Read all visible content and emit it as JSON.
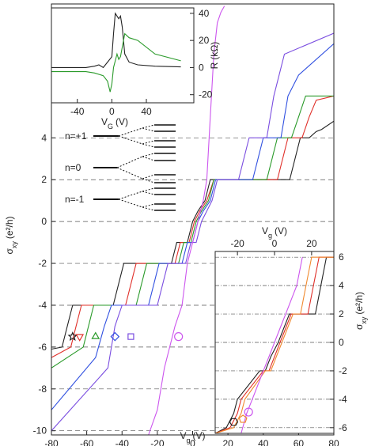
{
  "chart_data": [
    {
      "type": "line",
      "x_label": {
        "symbol": "V",
        "subscript": "g",
        "unit": "(V)"
      },
      "y_label": {
        "symbol": "σ",
        "subscript": "xy",
        "unit": "(e²/h)"
      },
      "xlim": [
        -80,
        80
      ],
      "ylim": [
        -10.2,
        10.4
      ],
      "xticks": [
        -80,
        -60,
        -40,
        -20,
        0,
        20,
        40,
        60,
        80
      ],
      "yticks": [
        -10,
        -8,
        -6,
        -4,
        -2,
        0,
        2,
        4
      ],
      "grid": true,
      "annotations": [
        "n=+1",
        "n=0",
        "n=-1"
      ],
      "series": [
        {
          "color": "#222222",
          "x": [
            -80,
            -74,
            -71,
            -68,
            -45,
            -42,
            -39,
            -12,
            -9,
            -3,
            0,
            3,
            7,
            10,
            55,
            58,
            61,
            66,
            70,
            73,
            80
          ],
          "values": [
            -6.1,
            -6,
            -5,
            -4,
            -4,
            -3,
            -2,
            -2,
            -1,
            -1,
            0,
            0.5,
            1,
            2,
            2,
            3,
            4,
            4,
            4.3,
            4.4,
            4.8
          ]
        },
        {
          "color": "#e0302a",
          "x": [
            -80,
            -69,
            -66,
            -63,
            -38,
            -35,
            -32,
            -10,
            -7,
            -2,
            1,
            4,
            8,
            12,
            48,
            51,
            54,
            62,
            66,
            70,
            80
          ],
          "values": [
            -6.5,
            -6,
            -5,
            -4,
            -4,
            -3,
            -2,
            -2,
            -1,
            -1,
            0,
            0.5,
            1,
            2,
            2,
            3,
            4,
            4,
            5,
            5.8,
            6
          ]
        },
        {
          "color": "#2a9a2a",
          "x": [
            -80,
            -62,
            -59,
            -56,
            -32,
            -29,
            -26,
            -8,
            -5,
            -1,
            2,
            5,
            9,
            12,
            42,
            45,
            48,
            56,
            60,
            64,
            80
          ],
          "values": [
            -7,
            -6,
            -5,
            -4,
            -4,
            -3,
            -2,
            -2,
            -1,
            -1,
            0,
            0.5,
            1,
            2,
            2,
            3,
            4,
            4,
            5,
            6,
            6
          ]
        },
        {
          "color": "#3050e0",
          "x": [
            -80,
            -55,
            -50,
            -46,
            -25,
            -22,
            -19,
            -6,
            -3,
            0,
            3,
            6,
            10,
            13,
            34,
            37,
            40,
            50,
            54,
            60,
            80
          ],
          "values": [
            -9,
            -6.5,
            -5,
            -4,
            -4,
            -3,
            -2,
            -2,
            -1,
            -1,
            0,
            0.5,
            1,
            2,
            2,
            3,
            4,
            4,
            6,
            7,
            8.5
          ]
        },
        {
          "color": "#7a4de0",
          "x": [
            -80,
            -48,
            -44,
            -40,
            -20,
            -17,
            -14,
            -4,
            -1,
            2,
            5,
            8,
            11,
            14,
            26,
            29,
            32,
            42,
            46,
            52,
            80
          ],
          "values": [
            -10,
            -7,
            -5,
            -4,
            -4,
            -3,
            -2,
            -2,
            -1,
            -1,
            0,
            0.5,
            1,
            2,
            2,
            3,
            4,
            4,
            6,
            8,
            9
          ]
        },
        {
          "color": "#cc55ee",
          "x": [
            -25,
            -20,
            -16,
            -13,
            -10,
            -6,
            -3,
            0,
            3,
            6,
            8,
            10,
            12,
            14,
            16,
            18
          ],
          "values": [
            -10.2,
            -9,
            -7,
            -6,
            -5,
            -4,
            -2,
            -1,
            0,
            1,
            2,
            5,
            8,
            9.5,
            10,
            10.3
          ]
        }
      ],
      "markers": [
        {
          "symbol": "star",
          "color": "#222222",
          "x": -68,
          "y": -5.5
        },
        {
          "symbol": "triangle-down",
          "color": "#e0302a",
          "x": -64,
          "y": -5.5
        },
        {
          "symbol": "triangle-up",
          "color": "#2a9a2a",
          "x": -55,
          "y": -5.5
        },
        {
          "symbol": "diamond",
          "color": "#3050e0",
          "x": -44,
          "y": -5.5
        },
        {
          "symbol": "square",
          "color": "#7a4de0",
          "x": -35,
          "y": -5.5
        },
        {
          "symbol": "circle",
          "color": "#cc55ee",
          "x": -8,
          "y": -5.5
        }
      ]
    },
    {
      "type": "line",
      "x_label": {
        "symbol": "V",
        "subscript": "G",
        "unit": "(V)"
      },
      "y_label": {
        "symbol": "R",
        "subscript": "",
        "unit": "(kΩ)"
      },
      "xlim": [
        -70,
        95
      ],
      "ylim": [
        -26,
        44
      ],
      "xticks": [
        -40,
        0,
        40
      ],
      "yticks": [
        -20,
        0,
        20,
        40
      ],
      "grid": false,
      "series": [
        {
          "color": "#222222",
          "x": [
            -70,
            -30,
            -20,
            -15,
            -10,
            -5,
            0,
            2,
            4,
            6,
            8,
            10,
            12,
            15,
            20,
            30,
            50,
            80
          ],
          "values": [
            0,
            0,
            1,
            2,
            0,
            4,
            8,
            25,
            40,
            38,
            36,
            38,
            30,
            10,
            4,
            2,
            1,
            0.5
          ]
        },
        {
          "color": "#2a9a2a",
          "x": [
            -70,
            -30,
            -20,
            -10,
            -5,
            -2,
            0,
            2,
            4,
            6,
            8,
            10,
            15,
            20,
            30,
            50,
            80
          ],
          "values": [
            -3,
            -3,
            -4,
            -6,
            -10,
            -18,
            -12,
            0,
            5,
            10,
            6,
            8,
            25,
            22,
            20,
            10,
            5
          ]
        }
      ]
    },
    {
      "type": "line",
      "x_label": {
        "symbol": "V",
        "subscript": "g",
        "unit": "(V)"
      },
      "y_label": {
        "symbol": "σ",
        "subscript": "xy",
        "unit": "(e²/h)"
      },
      "xlim": [
        -32,
        32
      ],
      "ylim": [
        -6.4,
        6.4
      ],
      "xticks": [
        -20,
        0,
        20
      ],
      "yticks": [
        -6,
        -4,
        -2,
        0,
        2,
        4,
        6
      ],
      "grid": true,
      "series": [
        {
          "color": "#222222",
          "x": [
            -32,
            -26,
            -22,
            -20,
            -8,
            -5,
            -2,
            2,
            5,
            8,
            22,
            25,
            28,
            32
          ],
          "values": [
            -6.4,
            -6,
            -5,
            -4,
            -2,
            -2,
            -1,
            0,
            1,
            2,
            2,
            4,
            6,
            6
          ]
        },
        {
          "color": "#e0302a",
          "x": [
            -32,
            -24,
            -20,
            -18,
            -6,
            -3,
            0,
            3,
            6,
            9,
            18,
            21,
            24,
            32
          ],
          "values": [
            -6.4,
            -6,
            -5,
            -4,
            -2,
            -2,
            -1,
            0,
            1,
            2,
            2,
            4,
            6,
            6
          ]
        },
        {
          "color": "#f08a30",
          "x": [
            -32,
            -22,
            -18,
            -16,
            -5,
            -2,
            1,
            4,
            7,
            10,
            14,
            17,
            20,
            32
          ],
          "values": [
            -6.4,
            -6,
            -5,
            -4,
            -2,
            -2,
            -1,
            0,
            1,
            2,
            2,
            4,
            6,
            6
          ]
        },
        {
          "color": "#cc55ee",
          "x": [
            -18,
            -15,
            -12,
            -9,
            -6,
            -3,
            0,
            3,
            6,
            9,
            12,
            15
          ],
          "values": [
            -6.4,
            -5,
            -4,
            -3,
            -2,
            -1,
            0,
            1,
            2,
            3,
            4,
            6
          ]
        }
      ],
      "markers": [
        {
          "symbol": "hexagon",
          "color": "#222222",
          "x": -22,
          "y": -5.6
        },
        {
          "symbol": "pentagon",
          "color": "#f08a30",
          "x": -17,
          "y": -5.4
        },
        {
          "symbol": "circle",
          "color": "#cc55ee",
          "x": -14,
          "y": -4.9
        }
      ]
    }
  ]
}
